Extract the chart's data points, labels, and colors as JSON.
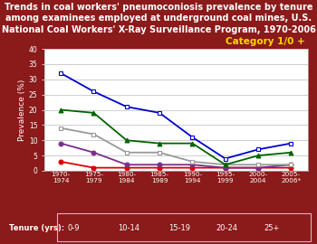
{
  "title": "Trends in coal workers' pneumoconiosis prevalence by tenure\namong examinees employed at underground coal mines, U.S.\nNational Coal Workers' X-Ray Surveillance Program, 1970-2006",
  "category_label": "Category 1/0 +",
  "ylabel": "Prevalence (%)",
  "background_color": "#8B1A1A",
  "plot_bg_color": "#ffffff",
  "x_labels": [
    "1970-\n1974",
    "1975-\n1979",
    "1980-\n1984",
    "1985-\n1989",
    "1990-\n1994",
    "1995-\n1999",
    "2000-\n2004",
    "2005-\n2006*"
  ],
  "x_values": [
    0,
    1,
    2,
    3,
    4,
    5,
    6,
    7
  ],
  "series": [
    {
      "label": "0-9",
      "color": "#dd0000",
      "marker": "o",
      "marker_face": "#dd0000",
      "values": [
        3,
        1,
        1,
        1,
        1,
        1,
        1,
        1
      ]
    },
    {
      "label": "10-14",
      "color": "#7B2D8B",
      "marker": "o",
      "marker_face": "#7B2D8B",
      "values": [
        9,
        6,
        2,
        2,
        2,
        1,
        1,
        2
      ]
    },
    {
      "label": "15-19",
      "color": "#999999",
      "marker": "s",
      "marker_face": "#ffffff",
      "values": [
        14,
        12,
        6,
        6,
        3,
        2,
        2,
        2
      ]
    },
    {
      "label": "20-24",
      "color": "#006400",
      "marker": "^",
      "marker_face": "#006400",
      "values": [
        20,
        19,
        10,
        9,
        9,
        2,
        5,
        6
      ]
    },
    {
      "label": "25+",
      "color": "#0000cc",
      "marker": "s",
      "marker_face": "#ffffff",
      "values": [
        32,
        26,
        21,
        19,
        11,
        4,
        7,
        9
      ]
    }
  ],
  "ylim": [
    0,
    40
  ],
  "yticks": [
    0,
    5,
    10,
    15,
    20,
    25,
    30,
    35,
    40
  ],
  "legend_tenure_label": "Tenure (yrs):",
  "title_color": "#ffffff",
  "title_fontsize": 7.0,
  "axis_label_color": "#ffffff",
  "tick_color": "#ffffff",
  "category_color": "#FFD700",
  "grid_color": "#bbbbbb",
  "legend_box_color": "#c0c0c0"
}
